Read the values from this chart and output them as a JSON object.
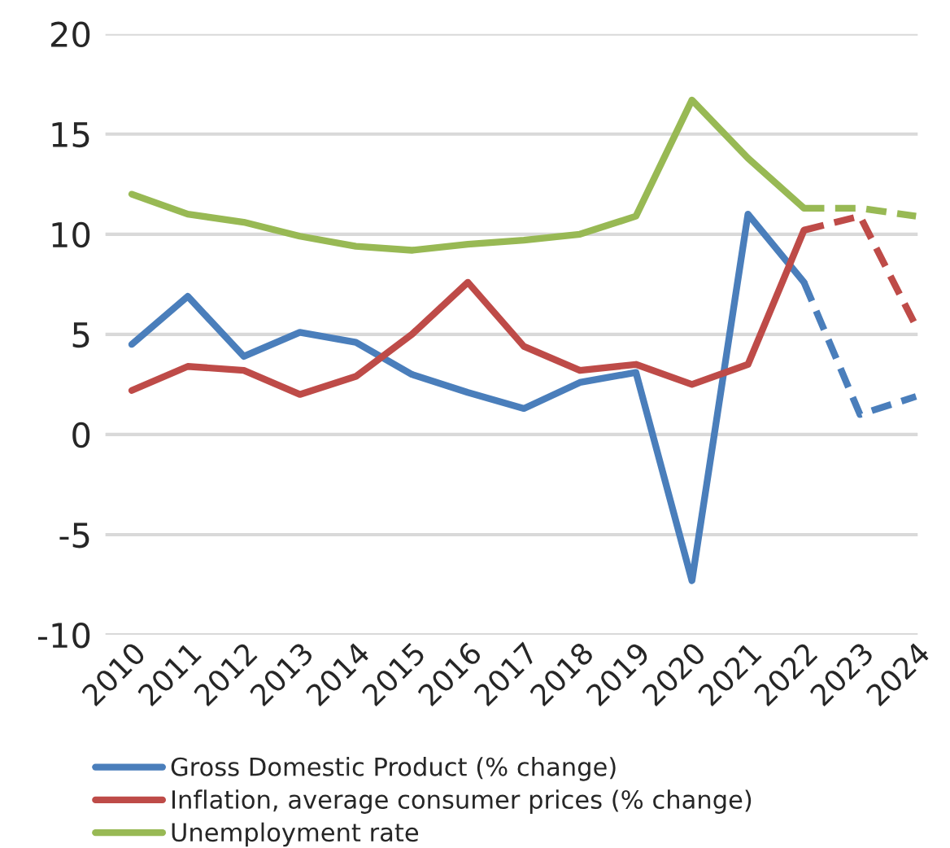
{
  "chart_data": {
    "type": "line",
    "categories": [
      "2010",
      "2011",
      "2012",
      "2013",
      "2014",
      "2015",
      "2016",
      "2017",
      "2018",
      "2019",
      "2020",
      "2021",
      "2022",
      "2023",
      "2024"
    ],
    "series": [
      {
        "name": "Gross Domestic Product (% change)",
        "color": "#4a7ebb",
        "line_style": "solid",
        "values": [
          4.5,
          6.9,
          3.9,
          5.1,
          4.6,
          3.0,
          2.1,
          1.3,
          2.6,
          3.1,
          -7.3,
          11.0,
          7.6,
          null,
          null
        ]
      },
      {
        "name": "Inflation, average consumer prices (% change)",
        "color": "#be4b48",
        "line_style": "solid",
        "values": [
          2.2,
          3.4,
          3.2,
          2.0,
          2.9,
          5.0,
          7.6,
          4.4,
          3.2,
          3.5,
          2.5,
          3.5,
          10.2,
          null,
          null
        ]
      },
      {
        "name": "Unemployment rate",
        "color": "#98b954",
        "line_style": "solid",
        "values": [
          12.0,
          11.0,
          10.6,
          9.9,
          9.4,
          9.2,
          9.5,
          9.7,
          10.0,
          10.9,
          16.7,
          13.8,
          11.3,
          null,
          null
        ]
      },
      {
        "color": "#4a7ebb",
        "line_style": "dashed",
        "values": [
          null,
          null,
          null,
          null,
          null,
          null,
          null,
          null,
          null,
          null,
          null,
          null,
          7.6,
          1.0,
          1.9
        ]
      },
      {
        "color": "#be4b48",
        "line_style": "dashed",
        "values": [
          null,
          null,
          null,
          null,
          null,
          null,
          null,
          null,
          null,
          null,
          null,
          null,
          10.2,
          10.9,
          5.4
        ]
      },
      {
        "color": "#98b954",
        "line_style": "dashed",
        "values": [
          null,
          null,
          null,
          null,
          null,
          null,
          null,
          null,
          null,
          null,
          null,
          null,
          11.3,
          11.3,
          10.9
        ]
      }
    ],
    "ylim": [
      -10,
      20
    ],
    "yticks": [
      -10,
      -5,
      0,
      5,
      10,
      15,
      20
    ],
    "grid": "y",
    "legend": "bottom",
    "marker": "none"
  }
}
